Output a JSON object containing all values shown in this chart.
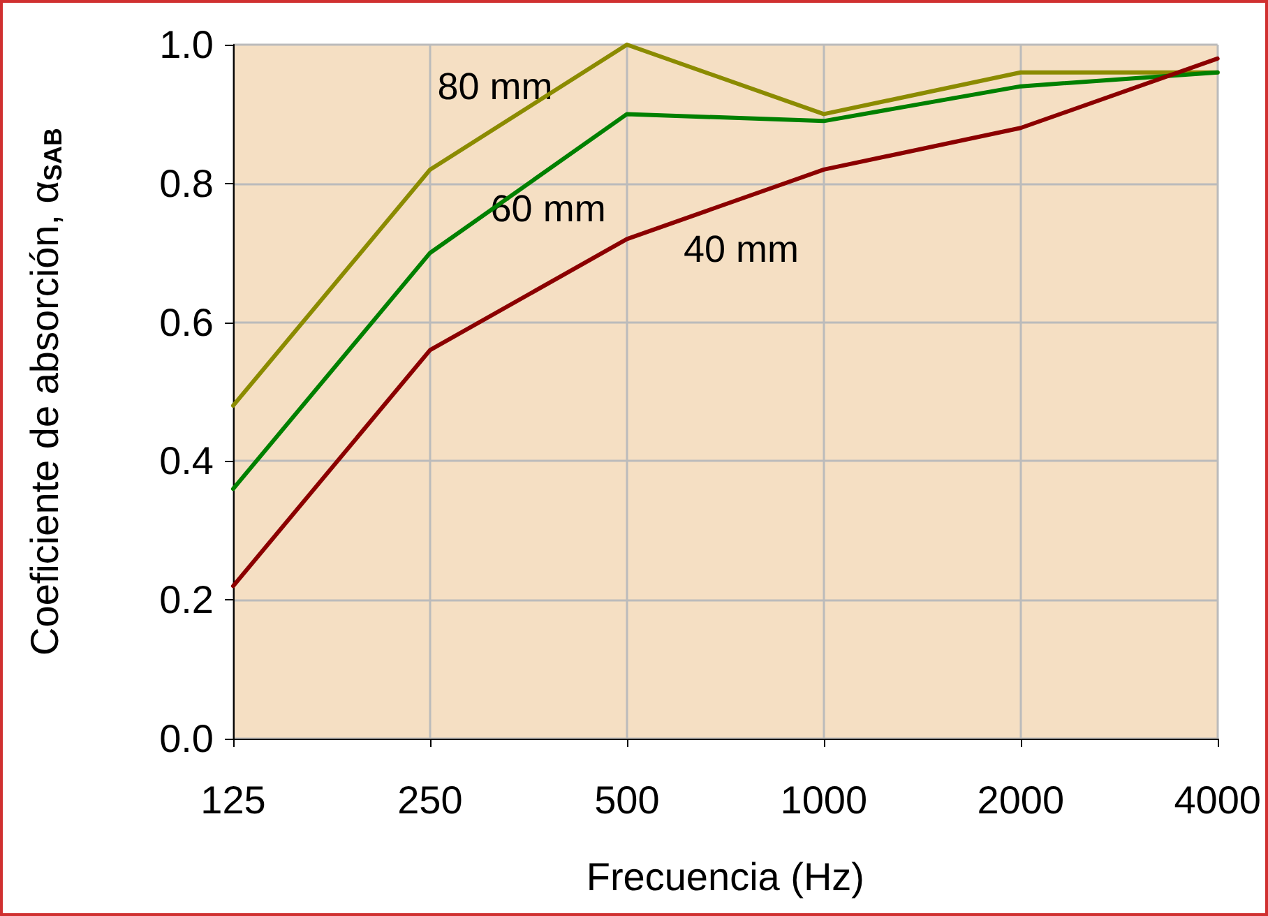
{
  "chart_data": {
    "type": "line",
    "xlabel": "Frecuencia (Hz)",
    "ylabel": "Coeficiente de absorción, α$_{SAB}$",
    "categories": [
      "125",
      "250",
      "500",
      "1000",
      "2000",
      "4000"
    ],
    "series": [
      {
        "name": "80 mm",
        "color": "#8b8b00",
        "values": [
          0.48,
          0.82,
          1.0,
          0.9,
          0.96,
          0.96
        ]
      },
      {
        "name": "60 mm",
        "color": "#008000",
        "values": [
          0.36,
          0.7,
          0.9,
          0.89,
          0.94,
          0.96
        ]
      },
      {
        "name": "40 mm",
        "color": "#8b0000",
        "values": [
          0.22,
          0.56,
          0.72,
          0.82,
          0.88,
          0.98
        ]
      }
    ],
    "ylim": [
      0,
      1
    ],
    "yticks": [
      {
        "value": 0,
        "label": "0.0"
      },
      {
        "value": 0.2,
        "label": "0.2"
      },
      {
        "value": 0.4,
        "label": "0.4"
      },
      {
        "value": 0.6,
        "label": "0.6"
      },
      {
        "value": 0.8,
        "label": "0.8"
      },
      {
        "value": 1,
        "label": "1.0"
      }
    ],
    "grid": true,
    "legend": false,
    "marker": "none",
    "line_style": "solid"
  }
}
